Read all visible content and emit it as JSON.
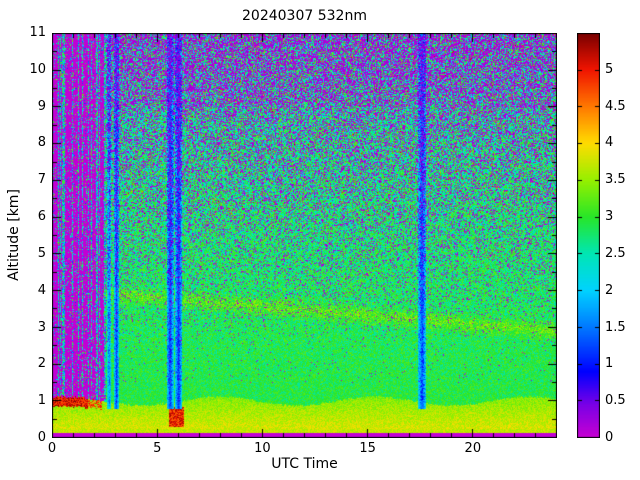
{
  "chart_data": {
    "type": "heatmap",
    "title": "20240307 532nm",
    "xlabel": "UTC Time",
    "ylabel": "Altitude [km]",
    "xlim": [
      0,
      24
    ],
    "ylim": [
      0,
      11
    ],
    "x_ticks": [
      0,
      5,
      10,
      15,
      20
    ],
    "x_tick_labels": [
      "0",
      "5",
      "10",
      "15",
      "20"
    ],
    "x_minor_step": 1,
    "y_ticks": [
      0,
      1,
      2,
      3,
      4,
      5,
      6,
      7,
      8,
      9,
      10,
      11
    ],
    "y_tick_labels": [
      "0",
      "1",
      "2",
      "3",
      "4",
      "5",
      "6",
      "7",
      "8",
      "9",
      "10",
      "11"
    ],
    "y_minor_step": 0.5,
    "colorbar": {
      "vmin": 0,
      "vmax": 5.5,
      "ticks": [
        0,
        0.5,
        1,
        1.5,
        2,
        2.5,
        3,
        3.5,
        4,
        4.5,
        5
      ],
      "tick_labels": [
        "0",
        "0.5",
        "1",
        "1.5",
        "2",
        "2.5",
        "3",
        "3.5",
        "4",
        "4.5",
        "5"
      ]
    },
    "colormap": [
      [
        0.0,
        "#c800d2"
      ],
      [
        0.45,
        "#7a00e6"
      ],
      [
        0.9,
        "#0000ff"
      ],
      [
        1.5,
        "#0078ff"
      ],
      [
        2.0,
        "#00d2ff"
      ],
      [
        2.5,
        "#00e6b4"
      ],
      [
        3.0,
        "#28e628"
      ],
      [
        3.5,
        "#96f000"
      ],
      [
        4.0,
        "#ffdc00"
      ],
      [
        4.5,
        "#ff7800"
      ],
      [
        5.0,
        "#f01400"
      ],
      [
        5.5,
        "#780000"
      ]
    ],
    "model": {
      "seed": 7,
      "surface_strip_km": 0.13,
      "bright_line": {
        "z0": 0.13,
        "z1": 0.24,
        "value": 3.7
      },
      "boundary_layer": {
        "top_km": 1.0,
        "wave": 0.12,
        "value": 3.85,
        "lapse": 0.45
      },
      "red_cap": {
        "t_end": 1.7,
        "value": 4.6
      },
      "red_blob": {
        "t0": 5.55,
        "t1": 6.25,
        "z0": 0.3,
        "z1": 0.85,
        "value": 4.5
      },
      "background": {
        "base": 2.92,
        "alt_slope": 0.035,
        "noise_base": 0.55,
        "noise_alt": 0.1
      },
      "aerosol_layer": {
        "alt_start": 4.05,
        "descent_per_hr": 0.048,
        "half_width": 0.3,
        "boost": 0.4
      },
      "dropout": {
        "start_alt": 2.5,
        "scale": 8.5,
        "max_p": 0.5,
        "top_extra": 0.1
      },
      "no_data_region": {
        "t_end": 2.55,
        "col_fraction": 0.8
      },
      "stripes": [
        {
          "t0": 2.62,
          "t1": 2.82,
          "drop": 1.2
        },
        {
          "t0": 2.95,
          "t1": 3.18,
          "drop": 1.6
        },
        {
          "t0": 5.45,
          "t1": 5.78,
          "drop": 1.7
        },
        {
          "t0": 5.85,
          "t1": 6.18,
          "drop": 1.7
        },
        {
          "t0": 17.4,
          "t1": 17.78,
          "drop": 1.6
        }
      ]
    }
  }
}
